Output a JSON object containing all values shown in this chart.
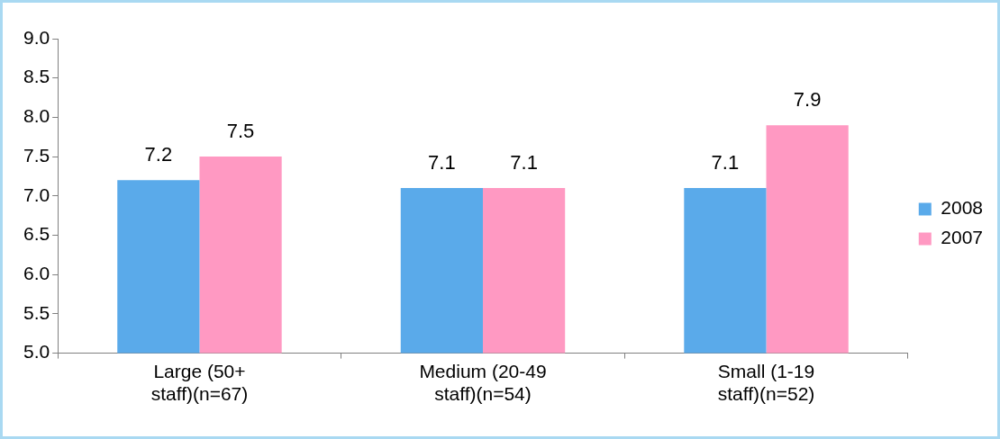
{
  "chart_data": {
    "type": "bar",
    "categories": [
      "Large (50+ staff)(n=67)",
      "Medium (20-49 staff)(n=54)",
      "Small (1-19 staff)(n=52)"
    ],
    "series": [
      {
        "name": "2008",
        "color": "#5aaaea",
        "values": [
          7.2,
          7.1,
          7.1
        ]
      },
      {
        "name": "2007",
        "color": "#ff99c2",
        "values": [
          7.5,
          7.1,
          7.9
        ]
      }
    ],
    "ylim": [
      5.0,
      9.0
    ],
    "yticks": [
      {
        "value": 5,
        "label": "5.0"
      },
      {
        "value": 5.5,
        "label": "5.5"
      },
      {
        "value": 6,
        "label": "6.0"
      },
      {
        "value": 6.5,
        "label": "6.5"
      },
      {
        "value": 7,
        "label": "7.0"
      },
      {
        "value": 7.5,
        "label": "7.5"
      },
      {
        "value": 8,
        "label": "8.0"
      },
      {
        "value": 8.5,
        "label": "8.5"
      },
      {
        "value": 9,
        "label": "9.0"
      }
    ],
    "grid": false,
    "legend": "right",
    "data_labels": true
  }
}
